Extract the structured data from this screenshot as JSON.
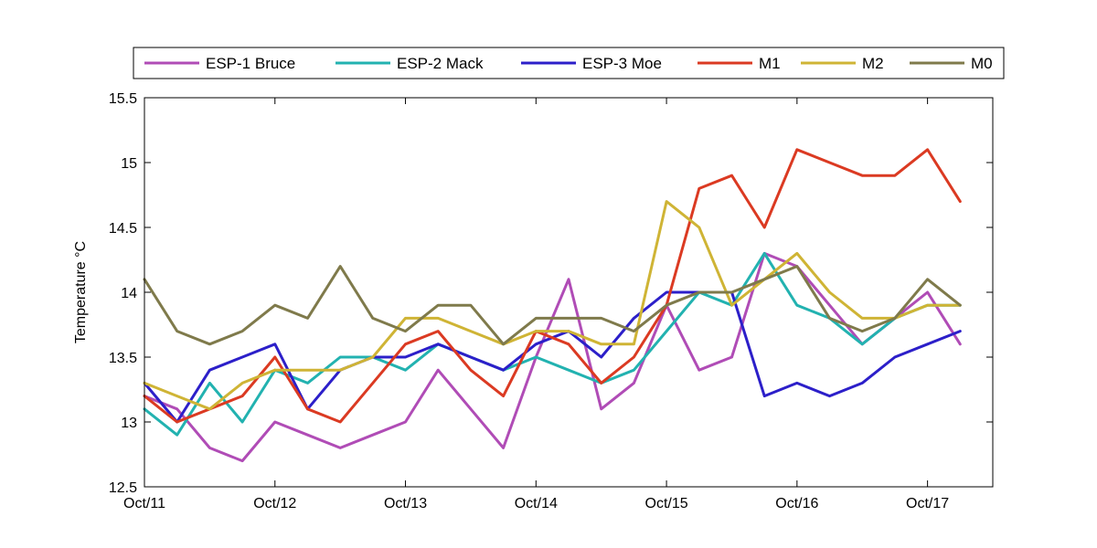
{
  "chart_data": {
    "type": "line",
    "title": "",
    "xlabel": "",
    "ylabel": "Temperature °C",
    "xlim": [
      "2011-10-11",
      "2011-10-17 12:00"
    ],
    "ylim": [
      12.5,
      15.5
    ],
    "x_ticks": [
      "Oct/11",
      "Oct/12",
      "Oct/13",
      "Oct/14",
      "Oct/15",
      "Oct/16",
      "Oct/17"
    ],
    "y_ticks": [
      "12.5",
      "13",
      "13.5",
      "14",
      "14.5",
      "15",
      "15.5"
    ],
    "grid": false,
    "legend_position": "top",
    "x": [
      "10-11 00:00",
      "10-11 06:00",
      "10-11 12:00",
      "10-11 18:00",
      "10-12 00:00",
      "10-12 06:00",
      "10-12 12:00",
      "10-12 18:00",
      "10-13 00:00",
      "10-13 06:00",
      "10-13 12:00",
      "10-13 18:00",
      "10-14 00:00",
      "10-14 06:00",
      "10-14 12:00",
      "10-14 18:00",
      "10-15 00:00",
      "10-15 06:00",
      "10-15 12:00",
      "10-15 18:00",
      "10-16 00:00",
      "10-16 06:00",
      "10-16 12:00",
      "10-16 18:00",
      "10-17 00:00",
      "10-17 06:00"
    ],
    "series": [
      {
        "name": "ESP-1 Bruce",
        "color": "#b04cb6",
        "values": [
          13.2,
          13.1,
          12.8,
          12.7,
          13.0,
          12.9,
          12.8,
          12.9,
          13.0,
          13.4,
          13.1,
          12.8,
          13.5,
          14.1,
          13.1,
          13.3,
          13.9,
          13.4,
          13.5,
          14.3,
          14.2,
          13.9,
          13.6,
          13.8,
          14.0,
          13.6
        ]
      },
      {
        "name": "ESP-2 Mack",
        "color": "#22b2b0",
        "values": [
          13.1,
          12.9,
          13.3,
          13.0,
          13.4,
          13.3,
          13.5,
          13.5,
          13.4,
          13.6,
          13.5,
          13.4,
          13.5,
          13.4,
          13.3,
          13.4,
          13.7,
          14.0,
          13.9,
          14.3,
          13.9,
          13.8,
          13.6,
          13.8,
          13.9,
          13.9
        ]
      },
      {
        "name": "ESP-3 Moe",
        "color": "#2c1fc9",
        "values": [
          13.3,
          13.0,
          13.4,
          13.5,
          13.6,
          13.1,
          13.4,
          13.5,
          13.5,
          13.6,
          13.5,
          13.4,
          13.6,
          13.7,
          13.5,
          13.8,
          14.0,
          14.0,
          14.0,
          13.2,
          13.3,
          13.2,
          13.3,
          13.5,
          13.6,
          13.7
        ]
      },
      {
        "name": "M1",
        "color": "#db3a22",
        "values": [
          13.2,
          13.0,
          13.1,
          13.2,
          13.5,
          13.1,
          13.0,
          13.3,
          13.6,
          13.7,
          13.4,
          13.2,
          13.7,
          13.6,
          13.3,
          13.5,
          13.9,
          14.8,
          14.9,
          14.5,
          15.1,
          15.0,
          14.9,
          14.9,
          15.1,
          14.7
        ]
      },
      {
        "name": "M2",
        "color": "#cfb435",
        "values": [
          13.3,
          13.2,
          13.1,
          13.3,
          13.4,
          13.4,
          13.4,
          13.5,
          13.8,
          13.8,
          13.7,
          13.6,
          13.7,
          13.7,
          13.6,
          13.6,
          14.7,
          14.5,
          13.9,
          14.1,
          14.3,
          14.0,
          13.8,
          13.8,
          13.9,
          13.9
        ]
      },
      {
        "name": "M0",
        "color": "#7f7a4b",
        "values": [
          14.1,
          13.7,
          13.6,
          13.7,
          13.9,
          13.8,
          14.2,
          13.8,
          13.7,
          13.9,
          13.9,
          13.6,
          13.8,
          13.8,
          13.8,
          13.7,
          13.9,
          14.0,
          14.0,
          14.1,
          14.2,
          13.8,
          13.7,
          13.8,
          14.1,
          13.9
        ]
      }
    ]
  }
}
